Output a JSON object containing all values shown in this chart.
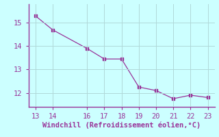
{
  "x": [
    13,
    14,
    16,
    17,
    18,
    19,
    20,
    21,
    22,
    23
  ],
  "y": [
    15.3,
    14.7,
    13.9,
    13.45,
    13.45,
    12.25,
    12.1,
    11.75,
    11.9,
    11.8
  ],
  "line_color": "#993399",
  "marker": "s",
  "marker_size": 2.5,
  "xlabel": "Windchill (Refroidissement éolien,°C)",
  "xlabel_color": "#993399",
  "background_color": "#ccffff",
  "grid_color": "#b0d8d8",
  "tick_color": "#993399",
  "spine_color": "#993399",
  "xlim": [
    12.6,
    23.4
  ],
  "ylim": [
    11.4,
    15.8
  ],
  "xticks": [
    13,
    14,
    16,
    17,
    18,
    19,
    20,
    21,
    22,
    23
  ],
  "yticks": [
    12,
    13,
    14,
    15
  ],
  "font_size": 7.5
}
